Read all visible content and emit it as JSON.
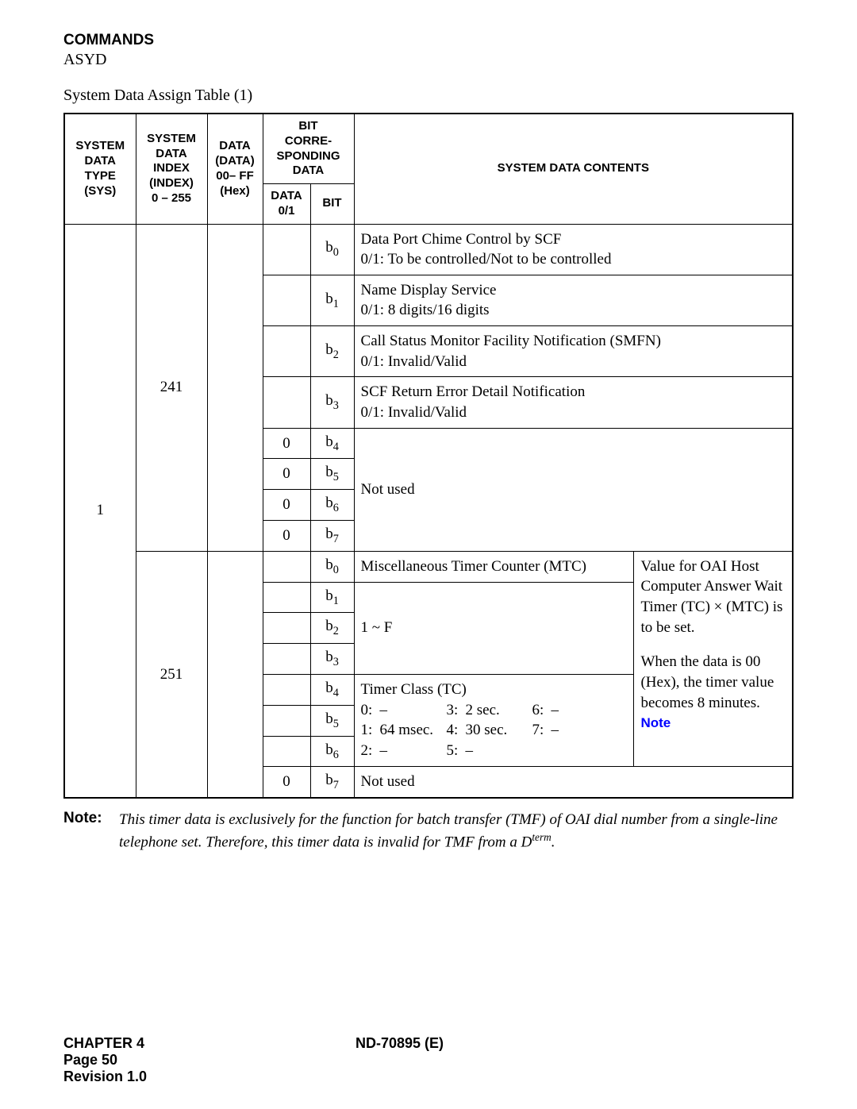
{
  "header": {
    "commands": "COMMANDS",
    "asyd": "ASYD"
  },
  "title": "System Data Assign Table (1)",
  "table": {
    "columns": {
      "sys": "SYSTEM\nDATA\nTYPE\n(SYS)",
      "index": "SYSTEM\nDATA\nINDEX\n(INDEX)\n0 – 255",
      "data": "DATA\n(DATA)\n00– FF\n(Hex)",
      "bitgroup": "BIT\nCORRE-\nSPONDING\nDATA",
      "data01": "DATA\n0/1",
      "bit": "BIT",
      "contents": "SYSTEM DATA CONTENTS"
    },
    "sys_value": "1",
    "sections": [
      {
        "index": "241",
        "rows": [
          {
            "data01": "",
            "bit": "b0",
            "content": "Data Port Chime Control by SCF\n0/1: To be controlled/Not to be controlled"
          },
          {
            "data01": "",
            "bit": "b1",
            "content": "Name Display Service\n0/1: 8 digits/16 digits"
          },
          {
            "data01": "",
            "bit": "b2",
            "content": "Call Status Monitor Facility Notification (SMFN)\n0/1: Invalid/Valid"
          },
          {
            "data01": "",
            "bit": "b3",
            "content": "SCF Return Error Detail Notification\n0/1: Invalid/Valid"
          },
          {
            "data01": "0",
            "bit": "b4"
          },
          {
            "data01": "0",
            "bit": "b5"
          },
          {
            "data01": "0",
            "bit": "b6"
          },
          {
            "data01": "0",
            "bit": "b7"
          }
        ],
        "not_used_label": "Not used"
      },
      {
        "index": "251",
        "side_note": {
          "lines": [
            "Value for OAI Host Computer Answer Wait Timer (TC) × (MTC) is to be set.",
            "",
            "When the data is 00 (Hex), the timer value becomes 8 minutes."
          ],
          "note_link": "Note"
        },
        "mtc_label": "Miscellaneous Timer Counter (MTC)",
        "mtc_range": "1 ~ F",
        "tc_label": "Timer Class (TC)",
        "tc_table": {
          "left": [
            [
              "0:",
              "–"
            ],
            [
              "1:",
              "64 msec."
            ],
            [
              "2:",
              "–"
            ]
          ],
          "right": [
            [
              "3:",
              "2 sec."
            ],
            [
              "4:",
              "30 sec."
            ],
            [
              "5:",
              "–"
            ]
          ],
          "extra": [
            [
              "6:",
              "–"
            ],
            [
              "7:",
              "–"
            ],
            [
              "",
              ""
            ]
          ]
        },
        "rows": [
          {
            "data01": "",
            "bit": "b0"
          },
          {
            "data01": "",
            "bit": "b1"
          },
          {
            "data01": "",
            "bit": "b2"
          },
          {
            "data01": "",
            "bit": "b3"
          },
          {
            "data01": "",
            "bit": "b4"
          },
          {
            "data01": "",
            "bit": "b5"
          },
          {
            "data01": "",
            "bit": "b6"
          },
          {
            "data01": "0",
            "bit": "b7",
            "content": "Not used"
          }
        ]
      }
    ]
  },
  "note": {
    "label": "Note:",
    "body_pre": "This timer data is exclusively for the function for batch transfer (TMF) of OAI dial number from a single-line telephone set. Therefore, this timer data is invalid for TMF from a D",
    "body_sup": "term",
    "body_post": "."
  },
  "footer": {
    "chapter": "CHAPTER 4",
    "docnum": "ND-70895 (E)",
    "page": "Page 50",
    "revision": "Revision 1.0"
  },
  "style": {
    "note_link_color": "#0000ff"
  }
}
